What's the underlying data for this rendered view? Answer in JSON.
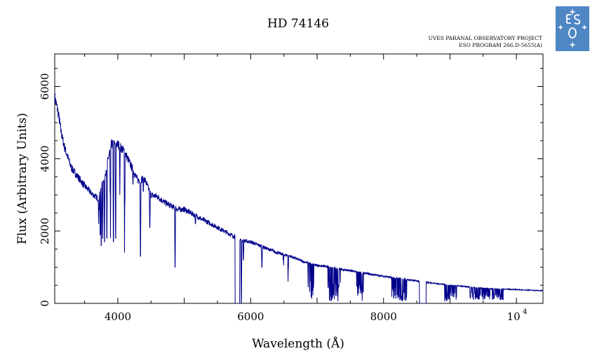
{
  "chart_data": {
    "type": "line",
    "title": "HD 74146",
    "project_line1": "UVES PARANAL OBSERVATORY PROJECT",
    "project_line2": "ESO PROGRAM 266.D-5655(A)",
    "xlabel": "Wavelength (Å)",
    "ylabel": "Flux (Arbitrary Units)",
    "xlim": [
      3050,
      10400
    ],
    "ylim": [
      0,
      6900
    ],
    "x_ticks": [
      {
        "value": 4000,
        "label": "4000"
      },
      {
        "value": 6000,
        "label": "6000"
      },
      {
        "value": 8000,
        "label": "8000"
      },
      {
        "value": 10000,
        "label": "10",
        "exponent": "4"
      }
    ],
    "y_ticks": [
      {
        "value": 0,
        "label": "0"
      },
      {
        "value": 2000,
        "label": "2000"
      },
      {
        "value": 4000,
        "label": "4000"
      },
      {
        "value": 6000,
        "label": "6000"
      }
    ],
    "grid": false,
    "line_color": "#00008b",
    "continuum": {
      "x": [
        3050,
        3100,
        3150,
        3200,
        3300,
        3400,
        3500,
        3600,
        3700,
        3800,
        3900,
        4000,
        4100,
        4200,
        4300,
        4400,
        4500,
        4600,
        4700,
        4800,
        4900,
        5000,
        5200,
        5400,
        5600,
        5800,
        5850,
        6000,
        6200,
        6400,
        6600,
        6800,
        7000,
        7200,
        7500,
        8000,
        8500,
        9000,
        9500,
        10000,
        10400
      ],
      "y": [
        5700,
        5300,
        4700,
        4300,
        3750,
        3500,
        3250,
        3050,
        2900,
        3500,
        4400,
        4400,
        4200,
        3800,
        3400,
        3450,
        3000,
        2950,
        2800,
        2700,
        2600,
        2600,
        2400,
        2200,
        2000,
        1800,
        1750,
        1700,
        1550,
        1400,
        1300,
        1150,
        1050,
        1000,
        900,
        750,
        620,
        500,
        420,
        380,
        350
      ]
    },
    "absorption_lines": [
      {
        "x": 3712,
        "y": 2200
      },
      {
        "x": 3734,
        "y": 1900
      },
      {
        "x": 3750,
        "y": 1600
      },
      {
        "x": 3771,
        "y": 1800
      },
      {
        "x": 3798,
        "y": 1700
      },
      {
        "x": 3835,
        "y": 1800
      },
      {
        "x": 3889,
        "y": 1800
      },
      {
        "x": 3933,
        "y": 1700
      },
      {
        "x": 3968,
        "y": 1800
      },
      {
        "x": 4030,
        "y": 3000
      },
      {
        "x": 4101,
        "y": 1400
      },
      {
        "x": 4227,
        "y": 3300
      },
      {
        "x": 4340,
        "y": 1300
      },
      {
        "x": 4383,
        "y": 3100
      },
      {
        "x": 4481,
        "y": 2100
      },
      {
        "x": 4861,
        "y": 1000
      },
      {
        "x": 5167,
        "y": 2200
      },
      {
        "x": 5270,
        "y": 2300
      },
      {
        "x": 5780,
        "y": 0
      },
      {
        "x": 5860,
        "y": 0
      },
      {
        "x": 5890,
        "y": 1200
      },
      {
        "x": 6170,
        "y": 1000
      },
      {
        "x": 6495,
        "y": 1050
      },
      {
        "x": 6563,
        "y": 600
      }
    ],
    "telluric_bands": [
      {
        "x0": 6860,
        "x1": 6950,
        "y": 100
      },
      {
        "x0": 7160,
        "x1": 7350,
        "y": 50
      },
      {
        "x0": 7590,
        "x1": 7700,
        "y": 50
      },
      {
        "x0": 8100,
        "x1": 8350,
        "y": 60
      },
      {
        "x0": 8920,
        "x1": 9100,
        "y": 50
      },
      {
        "x0": 9300,
        "x1": 9700,
        "y": 100
      },
      {
        "x0": 9700,
        "x1": 9800,
        "y": 80
      }
    ],
    "gaps": [
      {
        "x0": 5765,
        "x1": 5835
      },
      {
        "x0": 8540,
        "x1": 8640
      }
    ]
  },
  "logo": {
    "name": "ESO",
    "background_color": "#4f86c4",
    "foreground_color": "#ffffff"
  }
}
